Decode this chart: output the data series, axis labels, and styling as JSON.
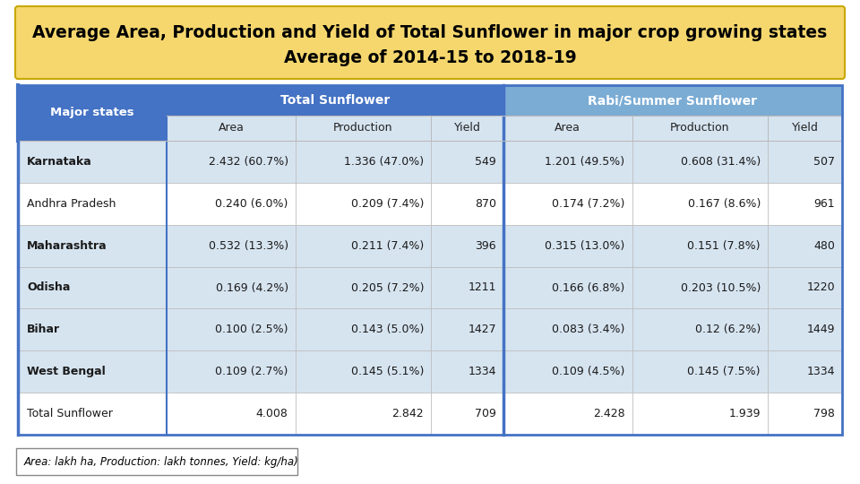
{
  "title_line1": "Average Area, Production and Yield of Total Sunflower in major crop growing states",
  "title_line2": "Average of 2014-15 to 2018-19",
  "title_bg": "#F5D76E",
  "title_border": "#C8A800",
  "header1_text": "Major states",
  "header2_text": "Total Sunflower",
  "header3_text": "Rabi/Summer Sunflower",
  "header_dark_bg": "#4472C4",
  "header_light_bg": "#7BACD4",
  "header_fg": "#FFFFFF",
  "subheader": [
    "Area",
    "Production",
    "Yield",
    "Area",
    "Production",
    "Yield"
  ],
  "rows": [
    [
      "Karnataka",
      "2.432 (60.7%)",
      "1.336 (47.0%)",
      "549",
      "1.201 (49.5%)",
      "0.608 (31.4%)",
      "507"
    ],
    [
      "Andhra Pradesh",
      "0.240 (6.0%)",
      "0.209 (7.4%)",
      "870",
      "0.174 (7.2%)",
      "0.167 (8.6%)",
      "961"
    ],
    [
      "Maharashtra",
      "0.532 (13.3%)",
      "0.211 (7.4%)",
      "396",
      "0.315 (13.0%)",
      "0.151 (7.8%)",
      "480"
    ],
    [
      "Odisha",
      "0.169 (4.2%)",
      "0.205 (7.2%)",
      "1211",
      "0.166 (6.8%)",
      "0.203 (10.5%)",
      "1220"
    ],
    [
      "Bihar",
      "0.100 (2.5%)",
      "0.143 (5.0%)",
      "1427",
      "0.083 (3.4%)",
      "0.12 (6.2%)",
      "1449"
    ],
    [
      "West Bengal",
      "0.109 (2.7%)",
      "0.145 (5.1%)",
      "1334",
      "0.109 (4.5%)",
      "0.145 (7.5%)",
      "1334"
    ],
    [
      "Total Sunflower",
      "4.008",
      "2.842",
      "709",
      "2.428",
      "1.939",
      "798"
    ]
  ],
  "col0_bold_rows": [
    0,
    2,
    3,
    4,
    5
  ],
  "total_row_idx": 6,
  "alt_row_bg": "#D6E4F0",
  "white_row_bg": "#FFFFFF",
  "subheader_row_bg": "#D6E4F0",
  "table_border": "#4472C4",
  "cell_text_color": "#1a1a1a",
  "figure_bg": "#FFFFFF",
  "footer_text": "Area: lakh ha, Production: lakh tonnes, Yield: kg/ha)"
}
